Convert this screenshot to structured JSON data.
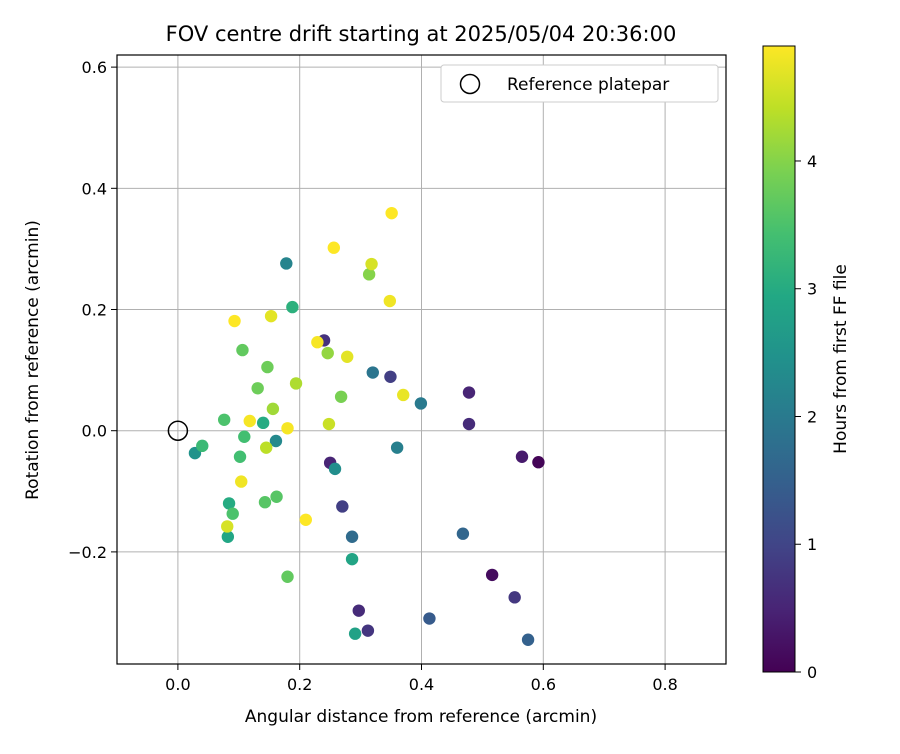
{
  "chart_data": {
    "type": "scatter",
    "title": "FOV centre drift starting at 2025/05/04 20:36:00",
    "xlabel": "Angular distance from reference (arcmin)",
    "ylabel": "Rotation from reference (arcmin)",
    "xlim": [
      -0.1,
      0.9
    ],
    "ylim": [
      -0.385,
      0.62
    ],
    "xticks": [
      "0.0",
      "0.2",
      "0.4",
      "0.6",
      "0.8"
    ],
    "yticks": [
      "−0.2",
      "0.0",
      "0.2",
      "0.4",
      "0.6"
    ],
    "grid": true,
    "legend": {
      "position": "top-right",
      "label": "Reference platepar"
    },
    "reference_point": {
      "x": 0.0,
      "y": 0.0
    },
    "colorbar": {
      "label": "Hours from first FF file",
      "colormap": "viridis",
      "range": [
        0,
        4.9
      ],
      "ticks": [
        "0",
        "1",
        "2",
        "3",
        "4"
      ]
    },
    "points": [
      {
        "x": 0.592,
        "y": -0.052,
        "h": 0.05
      },
      {
        "x": 0.516,
        "y": -0.238,
        "h": 0.15
      },
      {
        "x": 0.565,
        "y": -0.043,
        "h": 0.35
      },
      {
        "x": 0.478,
        "y": 0.063,
        "h": 0.5
      },
      {
        "x": 0.478,
        "y": 0.011,
        "h": 0.6
      },
      {
        "x": 0.553,
        "y": -0.275,
        "h": 0.8
      },
      {
        "x": 0.24,
        "y": 0.149,
        "h": 0.7
      },
      {
        "x": 0.25,
        "y": -0.053,
        "h": 0.5
      },
      {
        "x": 0.297,
        "y": -0.297,
        "h": 0.6
      },
      {
        "x": 0.312,
        "y": -0.33,
        "h": 0.75
      },
      {
        "x": 0.349,
        "y": 0.089,
        "h": 0.9
      },
      {
        "x": 0.27,
        "y": -0.125,
        "h": 0.9
      },
      {
        "x": 0.413,
        "y": -0.31,
        "h": 1.4
      },
      {
        "x": 0.575,
        "y": -0.345,
        "h": 1.5
      },
      {
        "x": 0.468,
        "y": -0.17,
        "h": 1.6
      },
      {
        "x": 0.286,
        "y": -0.175,
        "h": 1.7
      },
      {
        "x": 0.32,
        "y": 0.096,
        "h": 1.9
      },
      {
        "x": 0.399,
        "y": 0.045,
        "h": 2.0
      },
      {
        "x": 0.36,
        "y": -0.028,
        "h": 2.1
      },
      {
        "x": 0.178,
        "y": 0.276,
        "h": 2.2
      },
      {
        "x": 0.028,
        "y": -0.037,
        "h": 2.5
      },
      {
        "x": 0.258,
        "y": -0.063,
        "h": 2.4
      },
      {
        "x": 0.161,
        "y": -0.017,
        "h": 2.3
      },
      {
        "x": 0.291,
        "y": -0.335,
        "h": 2.8
      },
      {
        "x": 0.286,
        "y": -0.212,
        "h": 2.85
      },
      {
        "x": 0.082,
        "y": -0.175,
        "h": 2.9
      },
      {
        "x": 0.084,
        "y": -0.12,
        "h": 3.0
      },
      {
        "x": 0.14,
        "y": 0.013,
        "h": 3.0
      },
      {
        "x": 0.188,
        "y": 0.204,
        "h": 3.1
      },
      {
        "x": 0.04,
        "y": -0.025,
        "h": 3.3
      },
      {
        "x": 0.102,
        "y": -0.043,
        "h": 3.4
      },
      {
        "x": 0.109,
        "y": -0.01,
        "h": 3.4
      },
      {
        "x": 0.076,
        "y": 0.018,
        "h": 3.5
      },
      {
        "x": 0.09,
        "y": -0.137,
        "h": 3.5
      },
      {
        "x": 0.143,
        "y": -0.118,
        "h": 3.6
      },
      {
        "x": 0.162,
        "y": -0.109,
        "h": 3.6
      },
      {
        "x": 0.18,
        "y": -0.241,
        "h": 3.7
      },
      {
        "x": 0.106,
        "y": 0.133,
        "h": 3.7
      },
      {
        "x": 0.131,
        "y": 0.07,
        "h": 3.8
      },
      {
        "x": 0.147,
        "y": 0.105,
        "h": 3.8
      },
      {
        "x": 0.268,
        "y": 0.056,
        "h": 3.9
      },
      {
        "x": 0.314,
        "y": 0.258,
        "h": 4.0
      },
      {
        "x": 0.246,
        "y": 0.128,
        "h": 4.1
      },
      {
        "x": 0.156,
        "y": 0.036,
        "h": 4.2
      },
      {
        "x": 0.194,
        "y": 0.078,
        "h": 4.3
      },
      {
        "x": 0.145,
        "y": -0.028,
        "h": 4.4
      },
      {
        "x": 0.248,
        "y": 0.011,
        "h": 4.5
      },
      {
        "x": 0.318,
        "y": 0.275,
        "h": 4.6
      },
      {
        "x": 0.081,
        "y": -0.158,
        "h": 4.6
      },
      {
        "x": 0.153,
        "y": 0.189,
        "h": 4.7
      },
      {
        "x": 0.278,
        "y": 0.122,
        "h": 4.7
      },
      {
        "x": 0.37,
        "y": 0.059,
        "h": 4.75
      },
      {
        "x": 0.348,
        "y": 0.214,
        "h": 4.8
      },
      {
        "x": 0.104,
        "y": -0.084,
        "h": 4.8
      },
      {
        "x": 0.118,
        "y": 0.016,
        "h": 4.85
      },
      {
        "x": 0.18,
        "y": 0.004,
        "h": 4.85
      },
      {
        "x": 0.229,
        "y": 0.146,
        "h": 4.85
      },
      {
        "x": 0.21,
        "y": -0.147,
        "h": 4.9
      },
      {
        "x": 0.093,
        "y": 0.181,
        "h": 4.9
      },
      {
        "x": 0.256,
        "y": 0.302,
        "h": 4.9
      },
      {
        "x": 0.351,
        "y": 0.359,
        "h": 4.9
      }
    ]
  }
}
